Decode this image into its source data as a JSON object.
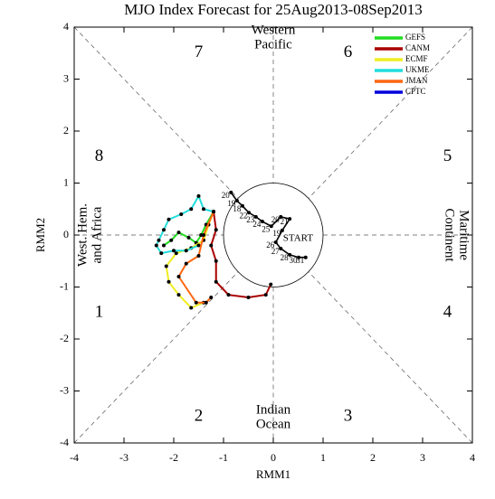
{
  "chart_data": {
    "type": "line",
    "title": "MJO Index Forecast for 25Aug2013-08Sep2013",
    "xlabel": "RMM1",
    "ylabel": "RMM2",
    "xlim": [
      -4,
      4
    ],
    "ylim": [
      -4,
      4
    ],
    "xticks": [
      -4,
      -3,
      -2,
      -1,
      0,
      1,
      2,
      3,
      4
    ],
    "yticks": [
      -4,
      -3,
      -2,
      -1,
      0,
      1,
      2,
      3,
      4
    ],
    "phases": [
      "1",
      "2",
      "3",
      "4",
      "5",
      "6",
      "7",
      "8"
    ],
    "regions": {
      "top": [
        "Western",
        "Pacific"
      ],
      "bottom": [
        "Indian",
        "Ocean"
      ],
      "left": [
        "West. Hem.",
        "and Africa"
      ],
      "right": [
        "Maritime",
        "Continent"
      ]
    },
    "start_label": "START",
    "observed": {
      "color": "#000000",
      "x": [
        -0.85,
        -0.73,
        -0.62,
        -0.49,
        -0.35,
        -0.22,
        -0.04,
        0.15,
        0.33,
        0.18,
        0.05,
        0.15,
        0.33,
        0.51,
        0.65
      ],
      "y": [
        0.82,
        0.66,
        0.56,
        0.43,
        0.35,
        0.26,
        0.17,
        0.35,
        0.31,
        0.09,
        -0.14,
        -0.26,
        -0.38,
        -0.43,
        -0.43
      ],
      "labels": [
        "20",
        "19",
        "18",
        "22",
        "23",
        "24",
        "25",
        "20",
        "21",
        "19",
        "26",
        "27",
        "28",
        "30",
        "31"
      ]
    },
    "series": [
      {
        "name": "GEFS",
        "color": "#22dd22",
        "x": [
          -1.2,
          -1.35,
          -1.45,
          -1.55,
          -1.7,
          -1.9,
          -2.05,
          -2.2
        ],
        "y": [
          0.45,
          0.2,
          0.0,
          -0.15,
          -0.05,
          0.05,
          -0.1,
          -0.2
        ]
      },
      {
        "name": "CANM",
        "color": "#aa0000",
        "x": [
          -1.2,
          -1.15,
          -1.25,
          -1.15,
          -1.15,
          -0.9,
          -0.5,
          -0.15,
          -0.05
        ],
        "y": [
          0.45,
          0.1,
          -0.2,
          -0.5,
          -0.9,
          -1.15,
          -1.2,
          -1.15,
          -0.95
        ]
      },
      {
        "name": "ECMF",
        "color": "#eeee22",
        "x": [
          -1.2,
          -1.3,
          -1.4,
          -1.65,
          -1.95,
          -2.15,
          -2.1,
          -1.9,
          -1.65,
          -1.4
        ],
        "y": [
          0.45,
          0.2,
          -0.1,
          -0.25,
          -0.35,
          -0.6,
          -0.9,
          -1.15,
          -1.4,
          -1.3
        ]
      },
      {
        "name": "UKME",
        "color": "#22dddd",
        "x": [
          -1.2,
          -1.4,
          -1.5,
          -1.65,
          -1.85,
          -2.1,
          -2.2,
          -2.3,
          -2.35,
          -2.25,
          -2.0,
          -1.75,
          -1.5
        ],
        "y": [
          0.45,
          0.5,
          0.75,
          0.5,
          0.4,
          0.3,
          0.1,
          -0.1,
          -0.2,
          -0.35,
          -0.3,
          -0.3,
          -0.2
        ]
      },
      {
        "name": "JMAN",
        "color": "#ff6611",
        "x": [
          -1.2,
          -1.4,
          -1.5,
          -1.75,
          -1.9,
          -1.55,
          -1.35,
          -1.25
        ],
        "y": [
          0.45,
          0.0,
          -0.4,
          -0.55,
          -0.8,
          -1.3,
          -1.3,
          -1.2
        ]
      },
      {
        "name": "CPTC",
        "color": "#0000dd",
        "x": [],
        "y": []
      }
    ]
  }
}
